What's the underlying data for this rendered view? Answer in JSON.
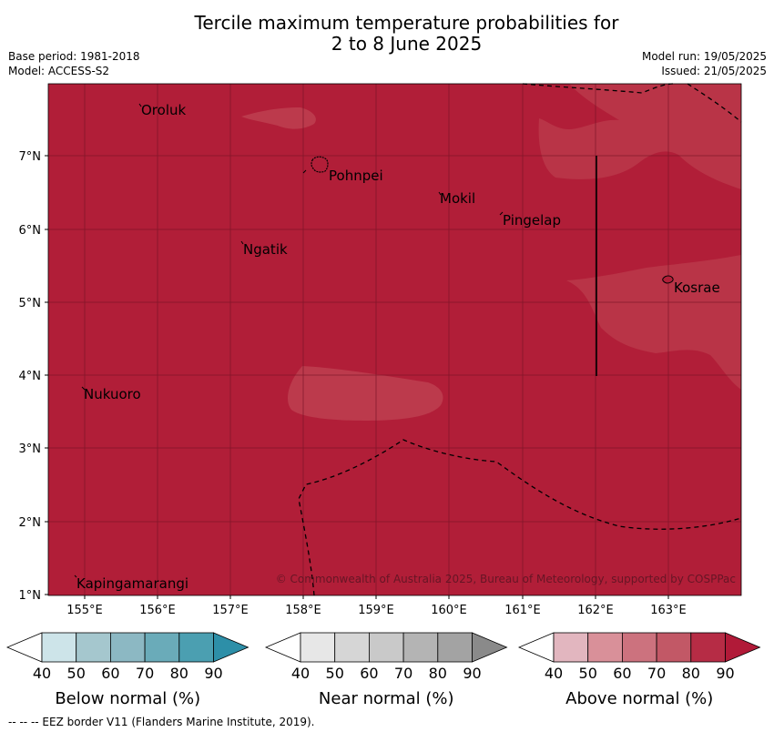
{
  "title_line1": "Tercile maximum temperature probabilities for",
  "title_line2": "2 to 8 June 2025",
  "base_period": "Base period: 1981-2018",
  "model": "Model: ACCESS-S2",
  "model_run": "Model run: 19/05/2025",
  "issued": "Issued: 21/05/2025",
  "copyright": "© Commonwealth of Australia 2025, Bureau of Meteorology, supported by COSPPac",
  "eez_note": "--  --  -- EEZ border V11 (Flanders Marine Institute, 2019).",
  "lon_ticks": [
    "155°E",
    "156°E",
    "157°E",
    "158°E",
    "159°E",
    "160°E",
    "161°E",
    "162°E",
    "163°E"
  ],
  "lat_ticks": [
    "7°N",
    "6°N",
    "5°N",
    "4°N",
    "3°N",
    "2°N",
    "1°N"
  ],
  "places": [
    {
      "name": "Oroluk"
    },
    {
      "name": "Pohnpei"
    },
    {
      "name": "Mokil"
    },
    {
      "name": "Pingelap"
    },
    {
      "name": "Ngatik"
    },
    {
      "name": "Kosrae"
    },
    {
      "name": "Nukuoro"
    },
    {
      "name": "Kapingamarangi"
    }
  ],
  "colorbars": [
    {
      "name": "below",
      "title": "Below normal (%)",
      "ticks": [
        "40",
        "50",
        "60",
        "70",
        "80",
        "90"
      ],
      "colors": [
        "#cde4e9",
        "#a5c7ce",
        "#8cb8c3",
        "#6aabb9",
        "#4b9fb1",
        "#2d8fa8"
      ]
    },
    {
      "name": "near",
      "title": "Near normal (%)",
      "ticks": [
        "40",
        "50",
        "60",
        "70",
        "80",
        "90"
      ],
      "colors": [
        "#e7e7e7",
        "#d6d6d6",
        "#c9c9c9",
        "#b4b4b4",
        "#a3a3a3",
        "#8a8a8a"
      ]
    },
    {
      "name": "above",
      "title": "Above normal (%)",
      "ticks": [
        "40",
        "50",
        "60",
        "70",
        "80",
        "90"
      ],
      "colors": [
        "#e2b6bf",
        "#d99099",
        "#cc727e",
        "#c25866",
        "#b62c45",
        "#b11a38"
      ]
    }
  ],
  "map_colors": {
    "dominant": "#b11e38",
    "lighter": "#b93447",
    "lightest": "#bc3a4c"
  }
}
